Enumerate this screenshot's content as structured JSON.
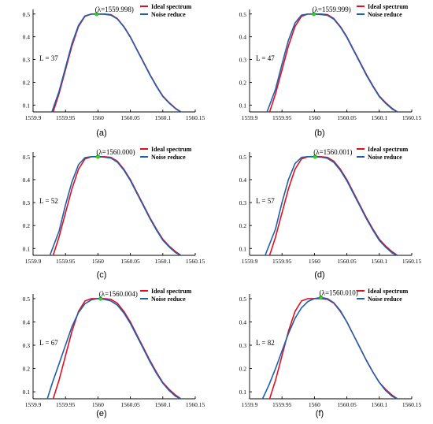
{
  "colors": {
    "ideal": "#e0101e",
    "noise": "#1f5fae",
    "peak": "#2fd12f",
    "axis": "#000000"
  },
  "chart_data": [
    {
      "type": "line",
      "panel": "(a)",
      "annotation": "L = 37",
      "peak_label": "(λ=1559.998)",
      "peak_x": 1559.998,
      "peak_y": 0.5,
      "xlim": [
        1559.9,
        1560.15
      ],
      "ylim": [
        0.07,
        0.52
      ],
      "xticks": [
        "1559.9",
        "1559.95",
        "1560",
        "1560.05",
        "1560.1",
        "1560.15"
      ],
      "yticks": [
        "0.1",
        "0.2",
        "0.3",
        "0.4",
        "0.5"
      ],
      "series": [
        {
          "name": "Ideal spectrum",
          "x": [
            1559.931,
            1559.94,
            1559.95,
            1559.96,
            1559.97,
            1559.98,
            1559.99,
            1560.0,
            1560.01,
            1560.02,
            1560.03,
            1560.04,
            1560.05,
            1560.06,
            1560.07,
            1560.08,
            1560.09,
            1560.1,
            1560.11,
            1560.12,
            1560.128
          ],
          "y": [
            0.07,
            0.15,
            0.255,
            0.36,
            0.445,
            0.49,
            0.5,
            0.5,
            0.5,
            0.497,
            0.48,
            0.445,
            0.4,
            0.345,
            0.29,
            0.235,
            0.185,
            0.14,
            0.11,
            0.085,
            0.07
          ]
        },
        {
          "name": "Noise reduce",
          "x": [
            1559.929,
            1559.94,
            1559.95,
            1559.96,
            1559.97,
            1559.98,
            1559.99,
            1560.0,
            1560.01,
            1560.02,
            1560.03,
            1560.04,
            1560.05,
            1560.06,
            1560.07,
            1560.08,
            1560.09,
            1560.1,
            1560.11,
            1560.12,
            1560.128
          ],
          "y": [
            0.07,
            0.16,
            0.265,
            0.37,
            0.45,
            0.492,
            0.5,
            0.5,
            0.499,
            0.495,
            0.478,
            0.443,
            0.398,
            0.343,
            0.288,
            0.233,
            0.183,
            0.138,
            0.108,
            0.083,
            0.07
          ]
        }
      ]
    },
    {
      "type": "line",
      "panel": "(b)",
      "annotation": "L = 47",
      "peak_label": "(λ=1559.999)",
      "peak_x": 1559.999,
      "peak_y": 0.5,
      "xlim": [
        1559.9,
        1560.15
      ],
      "ylim": [
        0.07,
        0.52
      ],
      "xticks": [
        "1559.9",
        "1559.95",
        "1560",
        "1560.05",
        "1560.1",
        "1560.15"
      ],
      "yticks": [
        "0.1",
        "0.2",
        "0.3",
        "0.4",
        "0.5"
      ],
      "series": [
        {
          "name": "Ideal spectrum",
          "x": [
            1559.931,
            1559.94,
            1559.95,
            1559.96,
            1559.97,
            1559.98,
            1559.99,
            1560.0,
            1560.01,
            1560.02,
            1560.03,
            1560.04,
            1560.05,
            1560.06,
            1560.07,
            1560.08,
            1560.09,
            1560.1,
            1560.11,
            1560.12,
            1560.128
          ],
          "y": [
            0.07,
            0.15,
            0.255,
            0.36,
            0.445,
            0.49,
            0.5,
            0.5,
            0.5,
            0.497,
            0.48,
            0.445,
            0.4,
            0.345,
            0.29,
            0.235,
            0.185,
            0.14,
            0.11,
            0.085,
            0.07
          ]
        },
        {
          "name": "Noise reduce",
          "x": [
            1559.927,
            1559.94,
            1559.95,
            1559.96,
            1559.97,
            1559.98,
            1559.99,
            1560.0,
            1560.01,
            1560.02,
            1560.03,
            1560.04,
            1560.05,
            1560.06,
            1560.07,
            1560.08,
            1560.09,
            1560.1,
            1560.11,
            1560.12,
            1560.128
          ],
          "y": [
            0.07,
            0.17,
            0.28,
            0.385,
            0.46,
            0.495,
            0.5,
            0.5,
            0.498,
            0.494,
            0.477,
            0.442,
            0.397,
            0.342,
            0.287,
            0.232,
            0.182,
            0.137,
            0.107,
            0.082,
            0.07
          ]
        }
      ]
    },
    {
      "type": "line",
      "panel": "(c)",
      "annotation": "L = 52",
      "peak_label": "(λ=1560.000)",
      "peak_x": 1560.0,
      "peak_y": 0.5,
      "xlim": [
        1559.9,
        1560.15
      ],
      "ylim": [
        0.07,
        0.52
      ],
      "xticks": [
        "1559.9",
        "1559.95",
        "1560",
        "1560.05",
        "1560.1",
        "1560.15"
      ],
      "yticks": [
        "0.1",
        "0.2",
        "0.3",
        "0.4",
        "0.5"
      ],
      "series": [
        {
          "name": "Ideal spectrum",
          "x": [
            1559.931,
            1559.94,
            1559.95,
            1559.96,
            1559.97,
            1559.98,
            1559.99,
            1560.0,
            1560.01,
            1560.02,
            1560.03,
            1560.04,
            1560.05,
            1560.06,
            1560.07,
            1560.08,
            1560.09,
            1560.1,
            1560.11,
            1560.12,
            1560.128
          ],
          "y": [
            0.07,
            0.15,
            0.255,
            0.36,
            0.445,
            0.49,
            0.5,
            0.5,
            0.5,
            0.497,
            0.48,
            0.445,
            0.4,
            0.345,
            0.29,
            0.235,
            0.185,
            0.14,
            0.11,
            0.085,
            0.07
          ]
        },
        {
          "name": "Noise reduce",
          "x": [
            1559.926,
            1559.94,
            1559.95,
            1559.96,
            1559.97,
            1559.98,
            1559.99,
            1560.0,
            1560.01,
            1560.02,
            1560.03,
            1560.04,
            1560.05,
            1560.06,
            1560.07,
            1560.08,
            1560.09,
            1560.1,
            1560.11,
            1560.12,
            1560.128
          ],
          "y": [
            0.07,
            0.175,
            0.29,
            0.39,
            0.465,
            0.496,
            0.5,
            0.5,
            0.498,
            0.494,
            0.476,
            0.441,
            0.396,
            0.341,
            0.286,
            0.231,
            0.181,
            0.136,
            0.106,
            0.081,
            0.07
          ]
        }
      ]
    },
    {
      "type": "line",
      "panel": "(d)",
      "annotation": "L = 57",
      "peak_label": "(λ=1560.001)",
      "peak_x": 1560.001,
      "peak_y": 0.5,
      "xlim": [
        1559.9,
        1560.15
      ],
      "ylim": [
        0.07,
        0.52
      ],
      "xticks": [
        "1559.9",
        "1559.95",
        "1560",
        "1560.05",
        "1560.1",
        "1560.15"
      ],
      "yticks": [
        "0.1",
        "0.2",
        "0.3",
        "0.4",
        "0.5"
      ],
      "series": [
        {
          "name": "Ideal spectrum",
          "x": [
            1559.931,
            1559.94,
            1559.95,
            1559.96,
            1559.97,
            1559.98,
            1559.99,
            1560.0,
            1560.01,
            1560.02,
            1560.03,
            1560.04,
            1560.05,
            1560.06,
            1560.07,
            1560.08,
            1560.09,
            1560.1,
            1560.11,
            1560.12,
            1560.128
          ],
          "y": [
            0.07,
            0.15,
            0.255,
            0.36,
            0.445,
            0.49,
            0.5,
            0.5,
            0.5,
            0.497,
            0.48,
            0.445,
            0.4,
            0.345,
            0.29,
            0.235,
            0.185,
            0.14,
            0.11,
            0.085,
            0.07
          ]
        },
        {
          "name": "Noise reduce",
          "x": [
            1559.924,
            1559.94,
            1559.95,
            1559.96,
            1559.97,
            1559.98,
            1559.99,
            1560.0,
            1560.01,
            1560.02,
            1560.03,
            1560.04,
            1560.05,
            1560.06,
            1560.07,
            1560.08,
            1560.09,
            1560.1,
            1560.11,
            1560.12,
            1560.128
          ],
          "y": [
            0.07,
            0.185,
            0.3,
            0.4,
            0.47,
            0.497,
            0.5,
            0.5,
            0.498,
            0.493,
            0.475,
            0.44,
            0.395,
            0.34,
            0.285,
            0.23,
            0.18,
            0.135,
            0.105,
            0.08,
            0.07
          ]
        }
      ]
    },
    {
      "type": "line",
      "panel": "(e)",
      "annotation": "L = 67",
      "peak_label": "(λ=1560.004)",
      "peak_x": 1560.004,
      "peak_y": 0.5,
      "xlim": [
        1559.9,
        1560.15
      ],
      "ylim": [
        0.07,
        0.52
      ],
      "xticks": [
        "1559.9",
        "1559.95",
        "1560",
        "1560.05",
        "1560.1",
        "1560.15"
      ],
      "yticks": [
        "0.1",
        "0.2",
        "0.3",
        "0.4",
        "0.5"
      ],
      "series": [
        {
          "name": "Ideal spectrum",
          "x": [
            1559.931,
            1559.94,
            1559.95,
            1559.96,
            1559.97,
            1559.98,
            1559.99,
            1560.0,
            1560.01,
            1560.02,
            1560.03,
            1560.04,
            1560.05,
            1560.06,
            1560.07,
            1560.08,
            1560.09,
            1560.1,
            1560.11,
            1560.12,
            1560.128
          ],
          "y": [
            0.07,
            0.15,
            0.255,
            0.36,
            0.445,
            0.49,
            0.5,
            0.5,
            0.5,
            0.497,
            0.48,
            0.445,
            0.4,
            0.345,
            0.29,
            0.235,
            0.185,
            0.14,
            0.11,
            0.085,
            0.07
          ]
        },
        {
          "name": "Noise reduce",
          "x": [
            1559.922,
            1559.93,
            1559.94,
            1559.95,
            1559.96,
            1559.97,
            1559.98,
            1559.99,
            1560.0,
            1560.01,
            1560.02,
            1560.03,
            1560.04,
            1560.05,
            1560.06,
            1560.07,
            1560.08,
            1560.09,
            1560.1,
            1560.11,
            1560.12,
            1560.128
          ],
          "y": [
            0.07,
            0.14,
            0.22,
            0.3,
            0.38,
            0.44,
            0.478,
            0.495,
            0.5,
            0.497,
            0.49,
            0.472,
            0.438,
            0.393,
            0.34,
            0.285,
            0.23,
            0.18,
            0.137,
            0.105,
            0.08,
            0.07
          ]
        }
      ]
    },
    {
      "type": "line",
      "panel": "(f)",
      "annotation": "L = 82",
      "peak_label": "(λ=1560.010)",
      "peak_x": 1560.01,
      "peak_y": 0.505,
      "xlim": [
        1559.9,
        1560.15
      ],
      "ylim": [
        0.07,
        0.52
      ],
      "xticks": [
        "1559.9",
        "1559.95",
        "1560",
        "1560.05",
        "1560.1",
        "1560.15"
      ],
      "yticks": [
        "0.1",
        "0.2",
        "0.3",
        "0.4",
        "0.5"
      ],
      "series": [
        {
          "name": "Ideal spectrum",
          "x": [
            1559.931,
            1559.94,
            1559.95,
            1559.96,
            1559.97,
            1559.98,
            1559.99,
            1560.0,
            1560.01,
            1560.02,
            1560.03,
            1560.04,
            1560.05,
            1560.06,
            1560.07,
            1560.08,
            1560.09,
            1560.1,
            1560.11,
            1560.12,
            1560.128
          ],
          "y": [
            0.07,
            0.15,
            0.255,
            0.36,
            0.445,
            0.49,
            0.5,
            0.5,
            0.5,
            0.497,
            0.48,
            0.445,
            0.4,
            0.345,
            0.29,
            0.235,
            0.185,
            0.14,
            0.11,
            0.085,
            0.07
          ]
        },
        {
          "name": "Noise reduce",
          "x": [
            1559.92,
            1559.93,
            1559.94,
            1559.95,
            1559.96,
            1559.97,
            1559.98,
            1559.99,
            1560.0,
            1560.01,
            1560.02,
            1560.03,
            1560.04,
            1560.05,
            1560.06,
            1560.07,
            1560.08,
            1560.09,
            1560.1,
            1560.11,
            1560.12,
            1560.128
          ],
          "y": [
            0.07,
            0.13,
            0.2,
            0.275,
            0.35,
            0.415,
            0.46,
            0.488,
            0.5,
            0.505,
            0.5,
            0.482,
            0.448,
            0.4,
            0.345,
            0.29,
            0.235,
            0.185,
            0.14,
            0.105,
            0.08,
            0.07
          ]
        }
      ]
    }
  ]
}
